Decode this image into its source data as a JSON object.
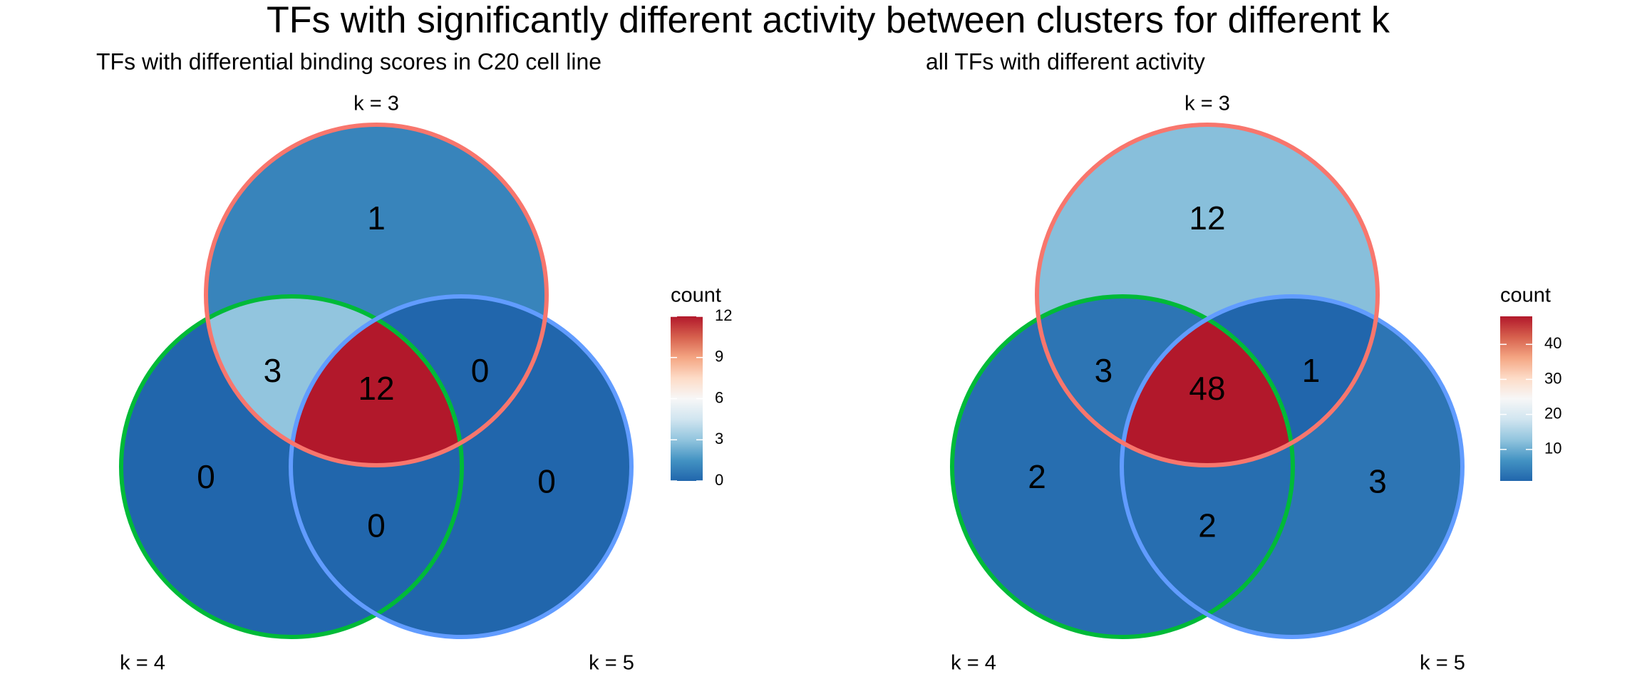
{
  "title": "TFs with significantly different activity between clusters for different k",
  "chart_data": [
    {
      "type": "venn",
      "title": "TFs with differential binding scores in C20 cell line",
      "sets": [
        {
          "name": "k = 3",
          "color": "#f8766d"
        },
        {
          "name": "k = 4",
          "color": "#00ba38"
        },
        {
          "name": "k = 5",
          "color": "#619cff"
        }
      ],
      "values": [
        1,
        3,
        0,
        12,
        0,
        0,
        0
      ],
      "colorbar": {
        "title": "count",
        "lim": [
          0,
          12
        ],
        "ticks": [
          0,
          3,
          6,
          9,
          12
        ],
        "colors": [
          "#2166ac",
          "#4393c3",
          "#92c5de",
          "#d1e5f0",
          "#f7f7f7",
          "#fddbc7",
          "#f4a582",
          "#d6604d",
          "#b2182b"
        ]
      }
    },
    {
      "type": "venn",
      "title": "all TFs with different activity",
      "sets": [
        {
          "name": "k = 3",
          "color": "#f8766d"
        },
        {
          "name": "k = 4",
          "color": "#00ba38"
        },
        {
          "name": "k = 5",
          "color": "#619cff"
        }
      ],
      "values": [
        12,
        3,
        1,
        48,
        2,
        3,
        2
      ],
      "colorbar": {
        "title": "count",
        "lim": [
          1,
          48
        ],
        "ticks": [
          10,
          20,
          30,
          40
        ],
        "colors": [
          "#2166ac",
          "#4393c3",
          "#92c5de",
          "#d1e5f0",
          "#f7f7f7",
          "#fddbc7",
          "#f4a582",
          "#d6604d",
          "#b2182b"
        ]
      }
    }
  ]
}
